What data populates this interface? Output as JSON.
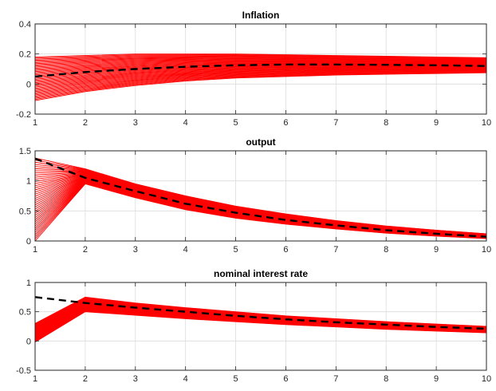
{
  "chart_data": [
    {
      "type": "line",
      "title": "Inflation",
      "xlabel": "",
      "ylabel": "",
      "x": [
        1,
        2,
        3,
        4,
        5,
        6,
        7,
        8,
        9,
        10
      ],
      "xlim": [
        1,
        10
      ],
      "ylim": [
        -0.2,
        0.4
      ],
      "xticks": [
        "1",
        "2",
        "3",
        "4",
        "5",
        "6",
        "7",
        "8",
        "9",
        "10"
      ],
      "yticks": [
        "-0.2",
        "0",
        "0.2",
        "0.4"
      ],
      "grid": true,
      "band": {
        "color": "#ff0000",
        "lines": 40,
        "lower": [
          -0.11,
          -0.05,
          -0.01,
          0.02,
          0.04,
          0.05,
          0.06,
          0.065,
          0.07,
          0.075
        ],
        "upper": [
          0.18,
          0.19,
          0.2,
          0.2,
          0.2,
          0.195,
          0.19,
          0.185,
          0.18,
          0.175
        ]
      },
      "series": [
        {
          "color": "#000000",
          "style": "dashed",
          "values": [
            0.05,
            0.08,
            0.1,
            0.115,
            0.125,
            0.13,
            0.13,
            0.128,
            0.125,
            0.12
          ]
        }
      ]
    },
    {
      "type": "line",
      "title": "output",
      "xlabel": "",
      "ylabel": "",
      "x": [
        1,
        2,
        3,
        4,
        5,
        6,
        7,
        8,
        9,
        10
      ],
      "xlim": [
        1,
        10
      ],
      "ylim": [
        0,
        1.5
      ],
      "xticks": [
        "1",
        "2",
        "3",
        "4",
        "5",
        "6",
        "7",
        "8",
        "9",
        "10"
      ],
      "yticks": [
        "0",
        "0.5",
        "1",
        "1.5"
      ],
      "grid": true,
      "band": {
        "color": "#ff0000",
        "lines": 40,
        "lower": [
          0.0,
          0.95,
          0.72,
          0.52,
          0.38,
          0.28,
          0.2,
          0.13,
          0.08,
          0.04
        ],
        "upper": [
          1.38,
          1.2,
          0.95,
          0.75,
          0.58,
          0.45,
          0.34,
          0.25,
          0.18,
          0.12
        ]
      },
      "series": [
        {
          "color": "#000000",
          "style": "dashed",
          "values": [
            1.37,
            1.05,
            0.83,
            0.62,
            0.47,
            0.35,
            0.26,
            0.18,
            0.12,
            0.07
          ]
        }
      ]
    },
    {
      "type": "line",
      "title": "nominal interest rate",
      "xlabel": "",
      "ylabel": "",
      "x": [
        1,
        2,
        3,
        4,
        5,
        6,
        7,
        8,
        9,
        10
      ],
      "xlim": [
        1,
        10
      ],
      "ylim": [
        -0.5,
        1
      ],
      "xticks": [
        "1",
        "2",
        "3",
        "4",
        "5",
        "6",
        "7",
        "8",
        "9",
        "10"
      ],
      "yticks": [
        "-0.5",
        "0",
        "0.5",
        "1"
      ],
      "grid": true,
      "band": {
        "color": "#ff0000",
        "lines": 40,
        "lower": [
          -0.02,
          0.5,
          0.44,
          0.38,
          0.33,
          0.28,
          0.24,
          0.2,
          0.17,
          0.14
        ],
        "upper": [
          0.3,
          0.75,
          0.65,
          0.57,
          0.5,
          0.43,
          0.38,
          0.33,
          0.29,
          0.25
        ]
      },
      "series": [
        {
          "color": "#000000",
          "style": "dashed",
          "values": [
            0.75,
            0.65,
            0.57,
            0.5,
            0.43,
            0.37,
            0.32,
            0.28,
            0.24,
            0.21
          ]
        }
      ]
    }
  ]
}
